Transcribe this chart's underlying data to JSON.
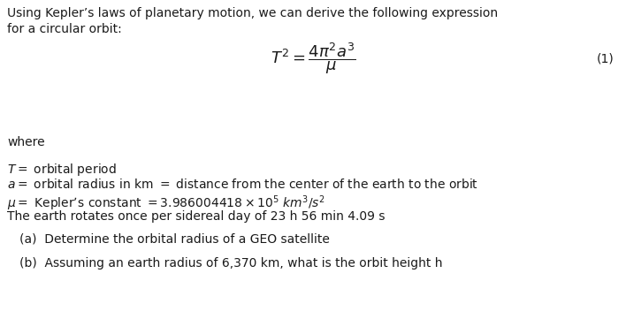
{
  "background_color": "#ffffff",
  "text_color": "#1a1a1a",
  "fig_width": 7.08,
  "fig_height": 3.61,
  "dpi": 100,
  "line1": "Using Kepler’s laws of planetary motion, we can derive the following expression",
  "line2": "for a circular orbit:",
  "equation": "$T^2 = \\dfrac{4\\pi^2 a^3}{\\mu}$",
  "eq_number": "(1)",
  "where_label": "where",
  "def1": "$T=$ orbital period",
  "def2": "$a=$ orbital radius in km $=$ distance from the center of the earth to the orbit",
  "def3": "$\\mu =$ Kepler’s constant $= 3.986004418 \\times 10^5$ $\\mathit{km}^3/s^2$",
  "def4": "The earth rotates once per sidereal day of 23 h 56 min 4.09 s",
  "part_a": "(a)  Determine the orbital radius of a GEO satellite",
  "part_b": "(b)  Assuming an earth radius of 6,370 km, what is the orbit height h",
  "font_size_body": 10.0,
  "font_size_eq": 13,
  "font_family": "sans-serif"
}
